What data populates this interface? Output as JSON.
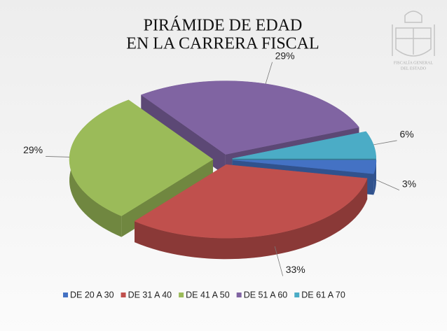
{
  "chart_data": {
    "type": "pie",
    "title": [
      "PIRÁMIDE DE EDAD",
      "EN LA CARRERA FISCAL"
    ],
    "categories": [
      "DE 20 A 30",
      "DE 31 A 40",
      "DE 41 A 50",
      "DE 51 A 60",
      "DE 61 A 70"
    ],
    "values": [
      3,
      33,
      29,
      29,
      6
    ],
    "value_labels": [
      "3%",
      "33%",
      "29%",
      "29%",
      "6%"
    ],
    "colors": [
      "#4472c4",
      "#c0504d",
      "#9bbb59",
      "#8064a2",
      "#4bacc6"
    ],
    "legend": "bottom"
  },
  "logo": {
    "lines": [
      "FISCALÍA GENERAL",
      "DEL ESTADO"
    ]
  }
}
